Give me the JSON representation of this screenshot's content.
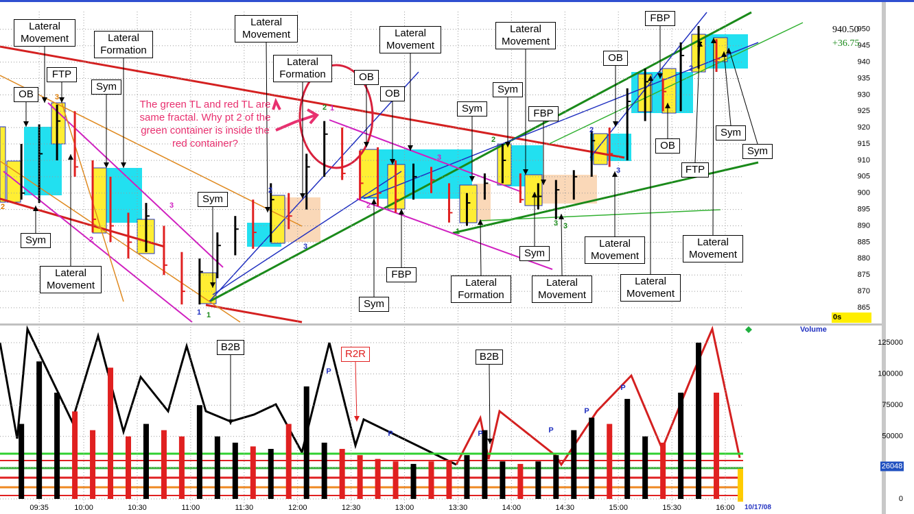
{
  "chart_data": [
    {
      "type": "ohlc",
      "x": [
        565,
        575,
        585,
        595,
        605,
        615,
        625,
        635,
        645,
        655,
        665,
        675,
        685,
        695,
        705,
        715,
        725,
        735,
        745,
        755,
        765,
        775,
        785,
        795,
        805,
        815,
        825,
        835,
        845,
        855,
        865,
        875,
        885,
        895,
        905,
        915,
        925,
        935,
        945,
        955
      ],
      "high": [
        915,
        921,
        927,
        925,
        910,
        905,
        894,
        897,
        890,
        882,
        880,
        888,
        893,
        898,
        903,
        900,
        912,
        922,
        920,
        913,
        914,
        910,
        909,
        908,
        903,
        900,
        906,
        915,
        906,
        903,
        904,
        907,
        919,
        920,
        932,
        938,
        935,
        946,
        951,
        947
      ],
      "low": [
        898,
        897,
        910,
        905,
        888,
        885,
        880,
        882,
        875,
        866,
        866,
        874,
        881,
        883,
        885,
        889,
        895,
        905,
        904,
        898,
        896,
        894,
        898,
        900,
        891,
        890,
        898,
        903,
        897,
        895,
        892,
        898,
        905,
        908,
        910,
        922,
        925,
        925,
        938,
        937
      ],
      "close": [
        900,
        912,
        922,
        908,
        892,
        890,
        885,
        893,
        878,
        870,
        876,
        884,
        889,
        888,
        898,
        893,
        908,
        918,
        906,
        903,
        900,
        898,
        905,
        904,
        894,
        897,
        903,
        910,
        898,
        899,
        901,
        905,
        916,
        912,
        928,
        934,
        931,
        942,
        946,
        941
      ],
      "up_color": "#000000",
      "down_color": "#e02020",
      "xlim": [
        553,
        970
      ],
      "ylim": [
        860.6,
        955.4
      ],
      "yticks": [
        865,
        870,
        875,
        880,
        885,
        890,
        895,
        900,
        905,
        910,
        915,
        920,
        925,
        930,
        935,
        940,
        945,
        950
      ],
      "grid": true,
      "last_label": "940.50",
      "change_label": "+36.75",
      "timer_label": "0s",
      "comment": "The green TL and red TL are same fractal. Why pt 2 of the green container is inside the red container?",
      "annotations": [
        "Lateral Movement",
        "FTP",
        "OB",
        "Sym",
        "Lateral Formation",
        "Sym",
        "Lateral Movement",
        "Sym",
        "Lateral Movement",
        "Lateral Formation",
        "OB",
        "OB",
        "Lateral Movement",
        "Sym",
        "Sym",
        "Lateral Movement",
        "FBP",
        "FBP",
        "Sym",
        "Lateral Formation",
        "Sym",
        "Lateral Movement",
        "OB",
        "FBP",
        "OB",
        "Lateral Movement",
        "Lateral Movement",
        "FTP",
        "Sym",
        "Sym",
        "Lateral Movement"
      ],
      "markers": [
        {
          "text": "3",
          "color": "#e07b00"
        },
        {
          "text": "2",
          "color": "#e07b00"
        },
        {
          "text": "3",
          "color": "#d020c0"
        },
        {
          "text": "2",
          "color": "#d020c0"
        },
        {
          "text": "1",
          "color": "#2030c0"
        },
        {
          "text": "1",
          "color": "#1a8a1a"
        },
        {
          "text": "2",
          "color": "#2030c0"
        },
        {
          "text": "3",
          "color": "#2030c0"
        },
        {
          "text": "2",
          "color": "#1a8a1a"
        },
        {
          "text": "1",
          "color": "#d020c0"
        },
        {
          "text": "3",
          "color": "#d020c0"
        },
        {
          "text": "2",
          "color": "#d020c0"
        },
        {
          "text": "1",
          "color": "#1a8a1a"
        },
        {
          "text": "2",
          "color": "#1a8a1a"
        },
        {
          "text": "3",
          "color": "#1a8a1a"
        },
        {
          "text": "3",
          "color": "#1a8a1a"
        },
        {
          "text": "2",
          "color": "#2030c0"
        },
        {
          "text": "3",
          "color": "#2030c0"
        },
        {
          "text": "2",
          "color": "#2030c0"
        }
      ]
    },
    {
      "type": "bar",
      "title": "Volume",
      "x": [
        565,
        575,
        585,
        595,
        605,
        615,
        625,
        635,
        645,
        655,
        665,
        675,
        685,
        695,
        705,
        715,
        725,
        735,
        745,
        755,
        765,
        775,
        785,
        795,
        805,
        815,
        825,
        835,
        845,
        855,
        865,
        875,
        885,
        895,
        905,
        915,
        925,
        935,
        945,
        955
      ],
      "values": [
        60000,
        110000,
        85000,
        70000,
        55000,
        105000,
        50000,
        60000,
        55000,
        50000,
        75000,
        50000,
        45000,
        42000,
        40000,
        60000,
        90000,
        45000,
        40000,
        35000,
        32000,
        30000,
        28000,
        30000,
        30000,
        35000,
        55000,
        30000,
        28000,
        30000,
        35000,
        55000,
        65000,
        60000,
        80000,
        50000,
        45000,
        85000,
        125000,
        85000
      ],
      "xlim": [
        553,
        970
      ],
      "xticks": [
        {
          "value": 575,
          "label": "09:35"
        },
        {
          "value": 600,
          "label": "10:00"
        },
        {
          "value": 630,
          "label": "10:30"
        },
        {
          "value": 660,
          "label": "11:00"
        },
        {
          "value": 690,
          "label": "11:30"
        },
        {
          "value": 720,
          "label": "12:00"
        },
        {
          "value": 750,
          "label": "12:30"
        },
        {
          "value": 780,
          "label": "13:00"
        },
        {
          "value": 810,
          "label": "13:30"
        },
        {
          "value": 840,
          "label": "14:00"
        },
        {
          "value": 870,
          "label": "14:30"
        },
        {
          "value": 900,
          "label": "15:00"
        },
        {
          "value": 930,
          "label": "15:30"
        },
        {
          "value": 960,
          "label": "16:00"
        }
      ],
      "date_label": "10/17/08",
      "ylim": [
        -3840,
        137600
      ],
      "yticks": [
        0,
        25000,
        50000,
        75000,
        100000,
        125000
      ],
      "grid": true,
      "last_value": 26048,
      "annotations": [
        "B2B",
        "R2R",
        "B2B"
      ],
      "markers": [
        {
          "text": "P",
          "color": "#2030c0"
        },
        {
          "text": "P",
          "color": "#2030c0"
        },
        {
          "text": "P",
          "color": "#2030c0"
        },
        {
          "text": "P",
          "color": "#2030c0"
        },
        {
          "text": "P",
          "color": "#2030c0"
        },
        {
          "text": "P",
          "color": "#2030c0"
        }
      ]
    }
  ]
}
